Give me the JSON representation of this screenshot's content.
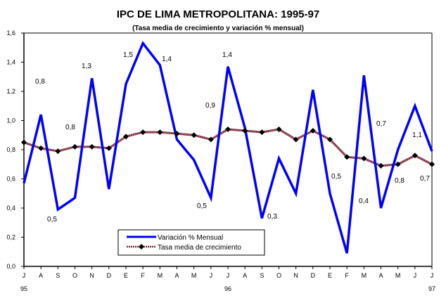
{
  "chart_data": {
    "type": "line",
    "title": "IPC DE LIMA METROPOLITANA: 1995-97",
    "subtitle": "(Tasa media de crecimiento y variación % mensual)",
    "xlabel": "",
    "ylabel": "",
    "ylim": [
      0,
      1.6
    ],
    "yticks": [
      "0,0",
      "0,2",
      "0,4",
      "0,6",
      "0,8",
      "1,0",
      "1,2",
      "1,4",
      "1,6"
    ],
    "ytick_values": [
      0,
      0.2,
      0.4,
      0.6,
      0.8,
      1.0,
      1.2,
      1.4,
      1.6
    ],
    "categories": [
      "J",
      "A",
      "S",
      "O",
      "N",
      "D",
      "E",
      "F",
      "M",
      "A",
      "M",
      "J",
      "J",
      "A",
      "S",
      "O",
      "N",
      "D",
      "E",
      "F",
      "M",
      "A",
      "M",
      "J",
      "J"
    ],
    "year_labels": [
      {
        "index": 0,
        "label": "95"
      },
      {
        "index": 12,
        "label": "96"
      },
      {
        "index": 24,
        "label": "97"
      }
    ],
    "grid": false,
    "legend_position": "bottom-left",
    "series": [
      {
        "name": "Variación % Mensual",
        "color": "#0000ff",
        "values": [
          0.57,
          1.04,
          0.39,
          0.47,
          1.29,
          0.53,
          1.25,
          1.53,
          1.38,
          0.87,
          0.73,
          0.47,
          1.37,
          0.95,
          0.33,
          0.74,
          0.5,
          1.21,
          0.5,
          0.09,
          1.31,
          0.4,
          0.8,
          1.1,
          0.79
        ]
      },
      {
        "name": "Tasa media de crecimiento",
        "color": "#7f2f3f",
        "marker_color": "#000000",
        "values": [
          0.85,
          0.81,
          0.79,
          0.82,
          0.82,
          0.81,
          0.89,
          0.92,
          0.92,
          0.91,
          0.9,
          0.87,
          0.94,
          0.93,
          0.92,
          0.94,
          0.87,
          0.93,
          0.87,
          0.75,
          0.74,
          0.69,
          0.7,
          0.76,
          0.7
        ]
      }
    ],
    "annotations": [
      {
        "text": "0,8",
        "near_index": 1
      },
      {
        "text": "0,5",
        "near_index": 2
      },
      {
        "text": "0,8",
        "near_index": 3
      },
      {
        "text": "1,3",
        "near_index": 4
      },
      {
        "text": "1,5",
        "near_index": 6
      },
      {
        "text": "1,4",
        "near_index": 8
      },
      {
        "text": "0,5",
        "near_index": 11
      },
      {
        "text": "0,9",
        "near_index": 11
      },
      {
        "text": "1,4",
        "near_index": 12
      },
      {
        "text": "0,3",
        "near_index": 14
      },
      {
        "text": "0,5",
        "near_index": 18
      },
      {
        "text": "0,4",
        "near_index": 20
      },
      {
        "text": "0,7",
        "near_index": 21
      },
      {
        "text": "0,8",
        "near_index": 22
      },
      {
        "text": "1,1",
        "near_index": 23
      },
      {
        "text": "0,7",
        "near_index": 24
      }
    ]
  }
}
